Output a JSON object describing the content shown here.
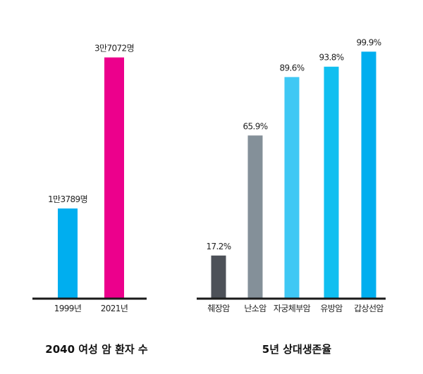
{
  "chart_data": [
    {
      "type": "bar",
      "title": "2040 여성 암 환자 수",
      "categories": [
        "1999년",
        "2021년"
      ],
      "values": [
        13789,
        37072
      ],
      "value_labels": [
        "1만3789명",
        "3만7072명"
      ],
      "ylim": [
        0,
        38000
      ],
      "grid": false,
      "colors": [
        "#00aeef",
        "#ec008c"
      ]
    },
    {
      "type": "bar",
      "title": "5년 상대생존율",
      "categories": [
        "췌장암",
        "난소암",
        "자궁체부암",
        "유방암",
        "갑상선암"
      ],
      "values": [
        17.2,
        65.9,
        89.6,
        93.8,
        99.9
      ],
      "value_labels": [
        "17.2%",
        "65.9%",
        "89.6%",
        "93.8%",
        "99.9%"
      ],
      "ylim": [
        0,
        100
      ],
      "grid": false,
      "colors": [
        "#4d5158",
        "#849099",
        "#3fc8f4",
        "#10bff0",
        "#00aeef"
      ]
    }
  ]
}
